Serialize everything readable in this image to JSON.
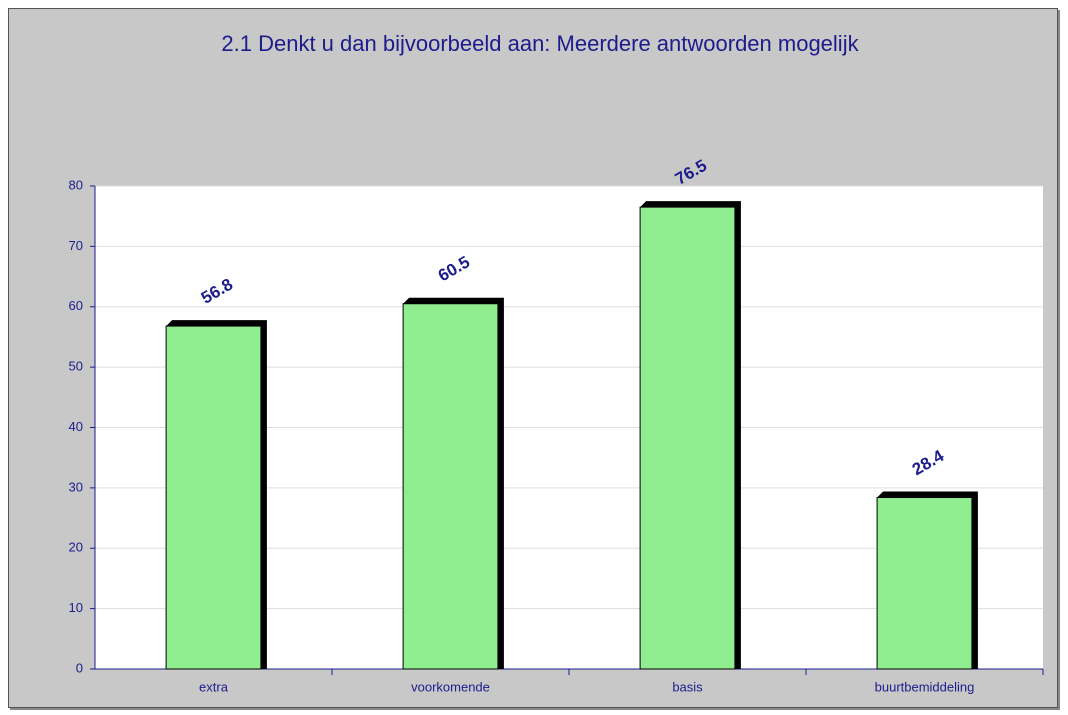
{
  "chart_data": {
    "type": "bar",
    "title": "2.1 Denkt u dan bijvoorbeeld aan: Meerdere antwoorden mogelijk",
    "categories": [
      "extra",
      "voorkomende",
      "basis",
      "buurtbemiddeling"
    ],
    "values": [
      56.8,
      60.5,
      76.5,
      28.4
    ],
    "color": "#90ee90",
    "ylim": [
      0,
      80
    ],
    "yticks": [
      0,
      10,
      20,
      30,
      40,
      50,
      60,
      70,
      80
    ],
    "grid": true
  }
}
